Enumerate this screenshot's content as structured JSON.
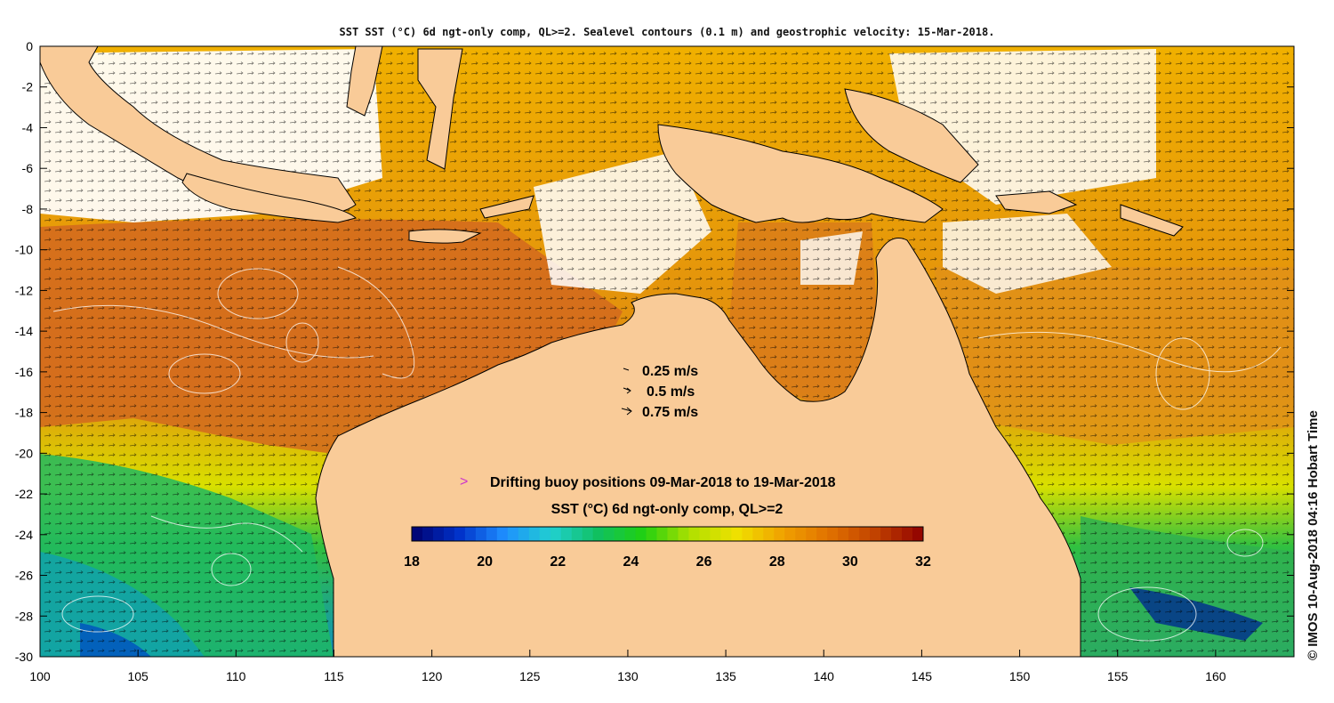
{
  "title": "SST SST (°C) 6d ngt-only comp, QL>=2. Sealevel contours (0.1 m) and geostrophic velocity: 15-Mar-2018.",
  "credit": "© IMOS 10-Aug-2018 04:16 Hobart Time",
  "axes": {
    "x_ticks": [
      "100",
      "105",
      "110",
      "115",
      "120",
      "125",
      "130",
      "135",
      "140",
      "145",
      "150",
      "155",
      "160"
    ],
    "y_ticks": [
      "0",
      "-2",
      "-4",
      "-6",
      "-8",
      "-10",
      "-12",
      "-14",
      "-16",
      "-18",
      "-20",
      "-22",
      "-24",
      "-26",
      "-28",
      "-30"
    ],
    "lon_range": [
      100,
      164
    ],
    "lat_range": [
      -30,
      0
    ]
  },
  "velocity_legend": [
    {
      "label": "0.25 m/s"
    },
    {
      "label": "0.5 m/s"
    },
    {
      "label": "0.75 m/s"
    }
  ],
  "buoy_legend": {
    "symbol": ">",
    "label": "Drifting buoy positions 09-Mar-2018 to 19-Mar-2018",
    "color": "#cc33cc"
  },
  "colorbar": {
    "title": "SST (°C) 6d ngt-only comp, QL>=2",
    "ticks": [
      "18",
      "20",
      "22",
      "24",
      "26",
      "28",
      "30",
      "32"
    ],
    "range": [
      18,
      32
    ],
    "colors": [
      "#00006e",
      "#0030c8",
      "#1f8fff",
      "#20d0d0",
      "#10c060",
      "#20d010",
      "#b0e000",
      "#f0e000",
      "#f0a000",
      "#e07000",
      "#c04000",
      "#900000"
    ]
  },
  "colors": {
    "land": "#f9cb98",
    "no_data": "#ffffff",
    "contour": "#ffffff",
    "coastline": "#000000"
  }
}
